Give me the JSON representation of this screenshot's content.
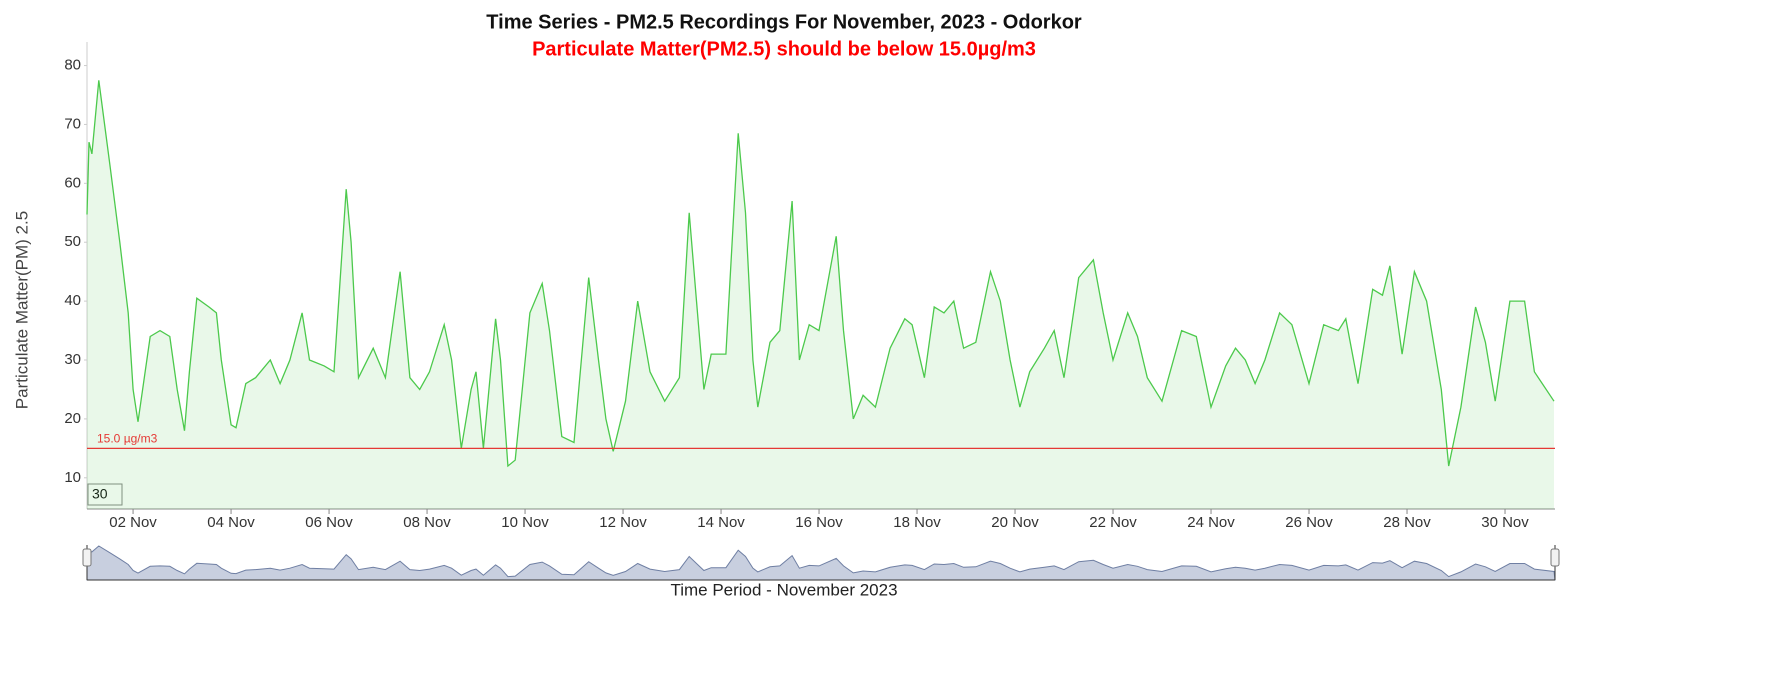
{
  "chart_data": {
    "type": "line",
    "title": "Time Series - PM2.5 Recordings For November, 2023 - Odorkor",
    "subtitle": "Particulate Matter(PM2.5) should be below 15.0µg/m3",
    "y_label": "Particulate Matter(PM) 2.5",
    "x_label": "Time Period - November 2023",
    "range_input": "30",
    "xlim": [
      1.06,
      31.02
    ],
    "ylim": [
      4.7,
      84
    ],
    "yticks": [
      10,
      20,
      30,
      40,
      50,
      60,
      70,
      80
    ],
    "xticks": [
      {
        "value": 2,
        "label": "02 Nov"
      },
      {
        "value": 4,
        "label": "04 Nov"
      },
      {
        "value": 6,
        "label": "06 Nov"
      },
      {
        "value": 8,
        "label": "08 Nov"
      },
      {
        "value": 10,
        "label": "10 Nov"
      },
      {
        "value": 12,
        "label": "12 Nov"
      },
      {
        "value": 14,
        "label": "14 Nov"
      },
      {
        "value": 16,
        "label": "16 Nov"
      },
      {
        "value": 18,
        "label": "18 Nov"
      },
      {
        "value": 20,
        "label": "20 Nov"
      },
      {
        "value": 22,
        "label": "22 Nov"
      },
      {
        "value": 24,
        "label": "24 Nov"
      },
      {
        "value": 26,
        "label": "26 Nov"
      },
      {
        "value": 28,
        "label": "28 Nov"
      },
      {
        "value": 30,
        "label": "30 Nov"
      }
    ],
    "threshold": {
      "value": 15,
      "label": "15.0 µg/m3",
      "color": "#e53935"
    },
    "series": [
      {
        "name": "PM2.5",
        "color": "#4cc94c",
        "x": [
          1.06,
          1.1,
          1.16,
          1.3,
          1.53,
          1.73,
          1.9,
          2.0,
          2.1,
          2.35,
          2.55,
          2.75,
          2.9,
          3.05,
          3.15,
          3.3,
          3.55,
          3.7,
          3.8,
          4.0,
          4.1,
          4.3,
          4.5,
          4.8,
          5.0,
          5.2,
          5.45,
          5.6,
          5.9,
          6.1,
          6.35,
          6.45,
          6.6,
          6.9,
          7.15,
          7.45,
          7.65,
          7.85,
          8.05,
          8.35,
          8.5,
          8.7,
          8.9,
          9.0,
          9.15,
          9.4,
          9.5,
          9.65,
          9.8,
          10.1,
          10.35,
          10.5,
          10.75,
          11.0,
          11.3,
          11.5,
          11.65,
          11.8,
          12.05,
          12.3,
          12.55,
          12.85,
          13.15,
          13.35,
          13.5,
          13.65,
          13.8,
          14.1,
          14.35,
          14.5,
          14.65,
          14.75,
          15.0,
          15.2,
          15.45,
          15.6,
          15.8,
          16.0,
          16.35,
          16.5,
          16.7,
          16.9,
          17.15,
          17.45,
          17.75,
          17.9,
          18.15,
          18.35,
          18.55,
          18.75,
          18.95,
          19.2,
          19.5,
          19.7,
          19.9,
          20.1,
          20.3,
          20.6,
          20.8,
          21.0,
          21.3,
          21.6,
          21.8,
          22.0,
          22.3,
          22.5,
          22.7,
          23.0,
          23.4,
          23.7,
          24.0,
          24.3,
          24.5,
          24.7,
          24.9,
          25.1,
          25.4,
          25.65,
          26.0,
          26.3,
          26.6,
          26.75,
          27.0,
          27.3,
          27.5,
          27.65,
          27.9,
          28.15,
          28.4,
          28.7,
          28.85,
          29.1,
          29.4,
          29.6,
          29.8,
          30.1,
          30.4,
          30.6,
          31.0
        ],
        "values": [
          54.7,
          67,
          65,
          77.5,
          63,
          50,
          38,
          25,
          19.5,
          34,
          35,
          34,
          25,
          18,
          28,
          40.5,
          39,
          38,
          30,
          19,
          18.5,
          26,
          27,
          30,
          26,
          30,
          38,
          30,
          29,
          28,
          59,
          50,
          27,
          32,
          27,
          45,
          27,
          25,
          28,
          36,
          30,
          15,
          25,
          28,
          15,
          37,
          30,
          12,
          13,
          38,
          43,
          35,
          17,
          16,
          44,
          30,
          20,
          14.5,
          23,
          40,
          28,
          23,
          27,
          55,
          40,
          25,
          31,
          31,
          68.5,
          55,
          30,
          22,
          33,
          35,
          57,
          30,
          36,
          35,
          51,
          35,
          20,
          24,
          22,
          32,
          37,
          36,
          27,
          39,
          38,
          40,
          32,
          33,
          45,
          40,
          30,
          22,
          28,
          32,
          35,
          27,
          44,
          47,
          38,
          30,
          38,
          34,
          27,
          23,
          35,
          34,
          22,
          29,
          32,
          30,
          26,
          30,
          38,
          36,
          26,
          36,
          35,
          37,
          26,
          42,
          41,
          46,
          31,
          45,
          40,
          25,
          12,
          22,
          39,
          33,
          23,
          40,
          40,
          28,
          23
        ]
      }
    ]
  }
}
